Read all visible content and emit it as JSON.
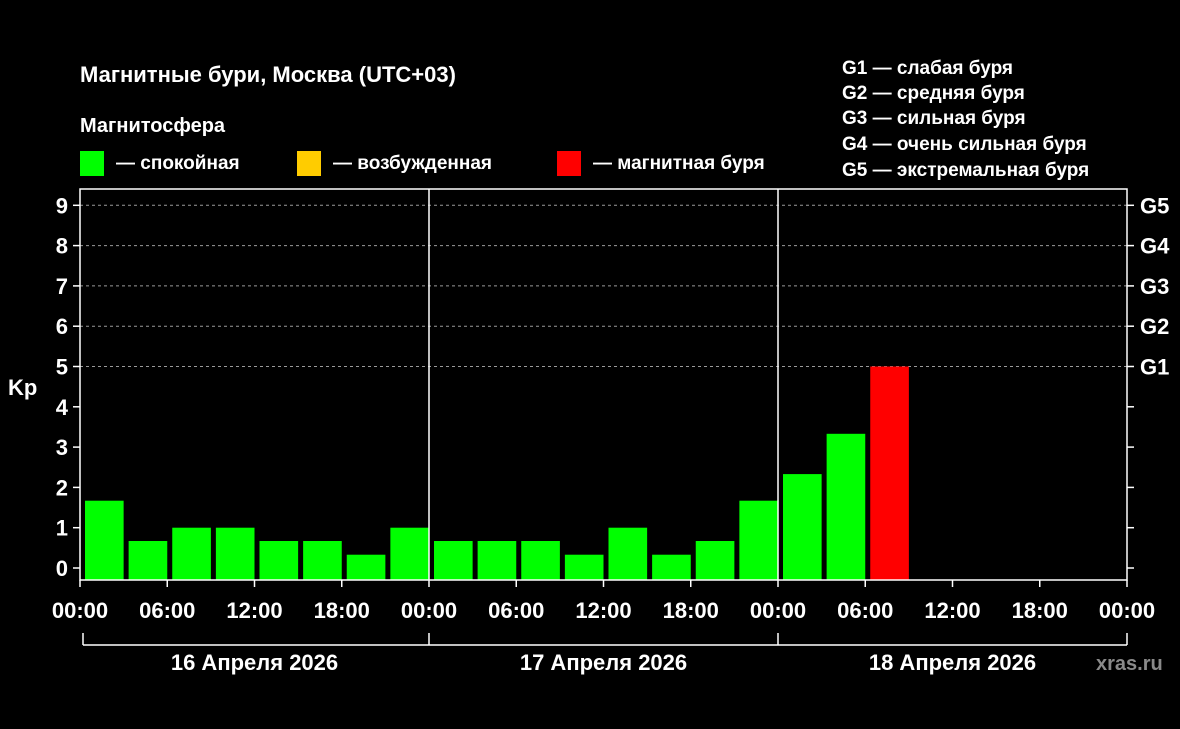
{
  "chart_data": {
    "type": "bar",
    "title": "Магнитные бури, Москва (UTC+03)",
    "legend_title": "Магнитосфера",
    "legend": [
      {
        "label": "— спокойная",
        "color": "#00ff00"
      },
      {
        "label": "— возбужденная",
        "color": "#ffcc00"
      },
      {
        "label": "— магнитная буря",
        "color": "#ff0000"
      }
    ],
    "g_scale_legend": [
      "G1 — слабая буря",
      "G2 — средняя буря",
      "G3 — сильная буря",
      "G4 — очень сильная буря",
      "G5 — экстремальная буря"
    ],
    "ylabel": "Kp",
    "ylim": [
      0,
      9
    ],
    "yticks": [
      "0",
      "1",
      "2",
      "3",
      "4",
      "5",
      "6",
      "7",
      "8",
      "9"
    ],
    "g_ticks": [
      {
        "label": "G1",
        "value": 5
      },
      {
        "label": "G2",
        "value": 6
      },
      {
        "label": "G3",
        "value": 7
      },
      {
        "label": "G4",
        "value": 8
      },
      {
        "label": "G5",
        "value": 9
      }
    ],
    "xticks": [
      "00:00",
      "06:00",
      "12:00",
      "18:00",
      "00:00",
      "06:00",
      "12:00",
      "18:00",
      "00:00",
      "06:00",
      "12:00",
      "18:00",
      "00:00"
    ],
    "days": [
      "16 Апреля 2026",
      "17 Апреля 2026",
      "18 Апреля 2026"
    ],
    "hours_per_bar": 3,
    "total_hours": 72,
    "values": [
      1.67,
      0.67,
      1.0,
      1.0,
      0.67,
      0.67,
      0.33,
      1.0,
      0.67,
      0.67,
      0.67,
      0.33,
      1.0,
      0.33,
      0.67,
      1.67,
      2.33,
      3.33,
      5.0
    ],
    "colors": [
      "#00ff00",
      "#00ff00",
      "#00ff00",
      "#00ff00",
      "#00ff00",
      "#00ff00",
      "#00ff00",
      "#00ff00",
      "#00ff00",
      "#00ff00",
      "#00ff00",
      "#00ff00",
      "#00ff00",
      "#00ff00",
      "#00ff00",
      "#00ff00",
      "#00ff00",
      "#00ff00",
      "#ff0000"
    ],
    "grid": true,
    "watermark": "xras.ru"
  }
}
